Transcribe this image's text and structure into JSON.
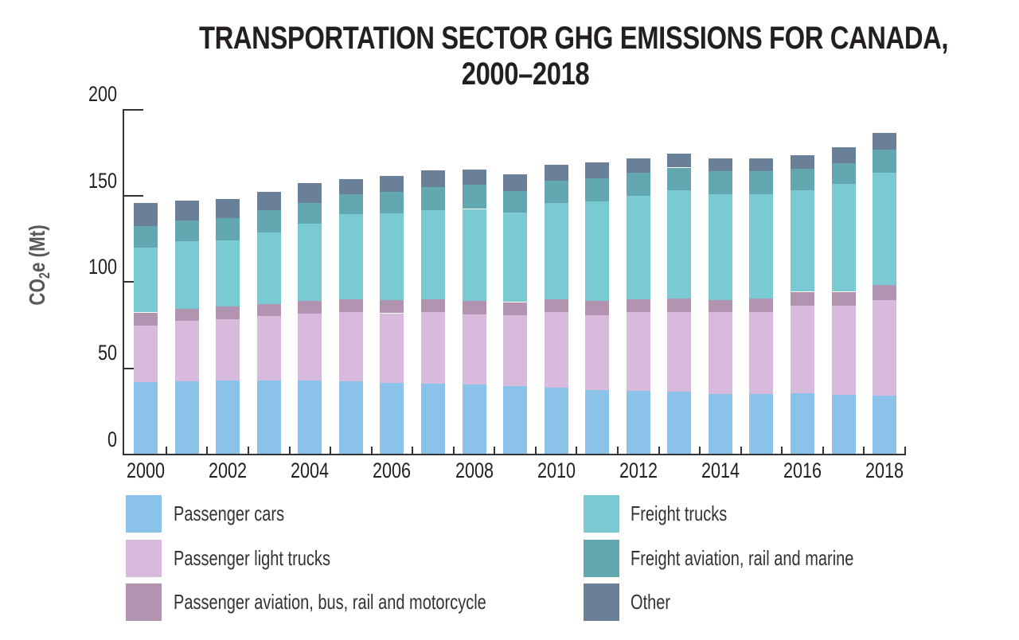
{
  "title": {
    "line1": "TRANSPORTATION SECTOR GHG EMISSIONS FOR CANADA,",
    "line2": "2000–2018"
  },
  "y_axis": {
    "label_co": "CO",
    "label_sub": "2",
    "label_rest": "e (Mt)",
    "ticks": [
      0,
      50,
      100,
      150,
      200
    ]
  },
  "x_axis": {
    "tick_years": [
      "2000",
      "2002",
      "2004",
      "2006",
      "2008",
      "2010",
      "2012",
      "2014",
      "2016",
      "2018"
    ]
  },
  "legend": {
    "columns": [
      {
        "items": [
          {
            "label": "Passenger cars",
            "color": "#8BC2EA"
          },
          {
            "label": "Passenger light trucks",
            "color": "#D7BADC"
          },
          {
            "label": "Passenger aviation, bus, rail and motorcycle",
            "color": "#B293B0"
          }
        ]
      },
      {
        "items": [
          {
            "label": "Freight trucks",
            "color": "#7ACAD4"
          },
          {
            "label": "Freight aviation, rail and marine",
            "color": "#63A7B1"
          },
          {
            "label": "Other",
            "color": "#6A8098"
          }
        ]
      }
    ]
  },
  "chart_data": {
    "type": "bar",
    "stacked": true,
    "title": "TRANSPORTATION SECTOR GHG EMISSIONS FOR CANADA, 2000–2018",
    "xlabel": "",
    "ylabel": "CO2e (Mt)",
    "ylim": [
      0,
      200
    ],
    "y_tick_interval": 50,
    "grid": false,
    "legend_position": "bottom",
    "categories": [
      2000,
      2001,
      2002,
      2003,
      2004,
      2005,
      2006,
      2007,
      2008,
      2009,
      2010,
      2011,
      2012,
      2013,
      2014,
      2015,
      2016,
      2017,
      2018
    ],
    "series": [
      {
        "name": "Passenger cars",
        "color": "#8BC2EA",
        "values": [
          41.5,
          42,
          42.5,
          42.5,
          42.5,
          42,
          41,
          40.5,
          40,
          39,
          38.5,
          37,
          36.5,
          36,
          34.5,
          34.5,
          35,
          34,
          33.5
        ]
      },
      {
        "name": "Passenger light trucks",
        "color": "#D7BADC",
        "values": [
          33,
          35,
          35.5,
          37.5,
          39,
          40,
          40.5,
          41.5,
          41,
          41.5,
          43.5,
          43.5,
          45.5,
          46,
          47.5,
          47.5,
          51,
          52,
          55.5
        ]
      },
      {
        "name": "Passenger aviation, bus, rail and motorcycle",
        "color": "#B293B0",
        "values": [
          7.5,
          7,
          7.5,
          7,
          7,
          7.5,
          7.5,
          7.5,
          7.5,
          7.5,
          7.5,
          8,
          7.5,
          8,
          7,
          8,
          8,
          8,
          9
        ]
      },
      {
        "name": "Freight trucks",
        "color": "#7ACAD4",
        "values": [
          37.5,
          39.5,
          38.5,
          41.5,
          45,
          49.5,
          50.5,
          52,
          53.5,
          52,
          56,
          58,
          60,
          63,
          61.5,
          60.5,
          59,
          62.5,
          65
        ]
      },
      {
        "name": "Freight aviation, rail and marine",
        "color": "#63A7B1",
        "values": [
          12.5,
          12,
          12.5,
          13,
          12,
          11.5,
          12.5,
          13,
          14,
          12.5,
          13,
          13.5,
          13.5,
          13,
          13.5,
          13.5,
          12.5,
          12,
          13.5
        ]
      },
      {
        "name": "Other",
        "color": "#6A8098",
        "values": [
          13.5,
          11.5,
          11.5,
          10.5,
          11.5,
          9,
          9,
          10,
          9,
          9.5,
          9,
          9,
          8.5,
          8,
          7.5,
          7.5,
          7.5,
          9.5,
          9.5
        ]
      }
    ]
  }
}
